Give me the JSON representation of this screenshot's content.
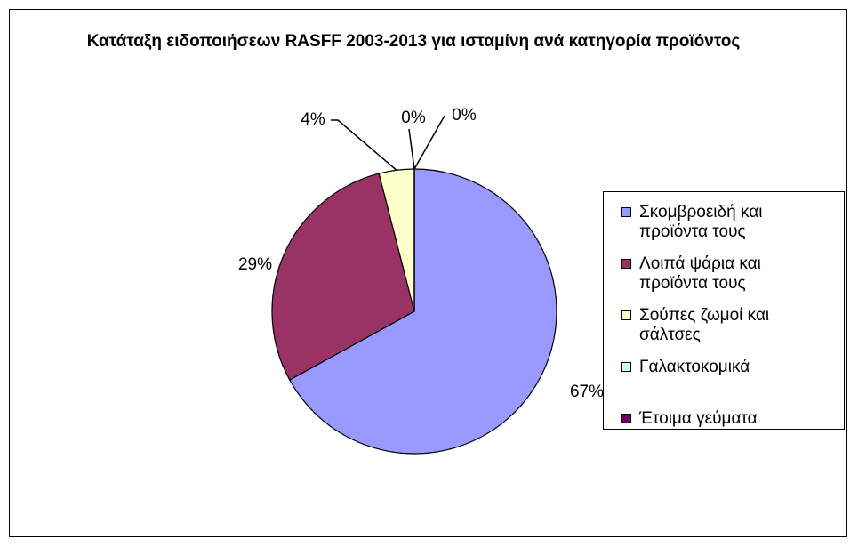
{
  "chart_data": {
    "type": "pie",
    "title": "Κατάταξη ειδοποιήσεων RASFF 2003-2013 για ισταμίνη ανά κατηγορία προϊόντος",
    "categories": [
      "Σκομβροειδή και προϊόντα τους",
      "Λοιπά ψάρια και προϊόντα τους",
      "Σούπες ζωμοί και σάλτσες",
      "Γαλακτοκομικά",
      "Έτοιμα γεύματα"
    ],
    "values": [
      67,
      29,
      4,
      0,
      0
    ],
    "value_labels": [
      "67%",
      "29%",
      "4%",
      "0%",
      "0%"
    ],
    "colors": [
      "#9999ff",
      "#993366",
      "#ffffcc",
      "#ccffff",
      "#660066"
    ],
    "legend": "right"
  }
}
